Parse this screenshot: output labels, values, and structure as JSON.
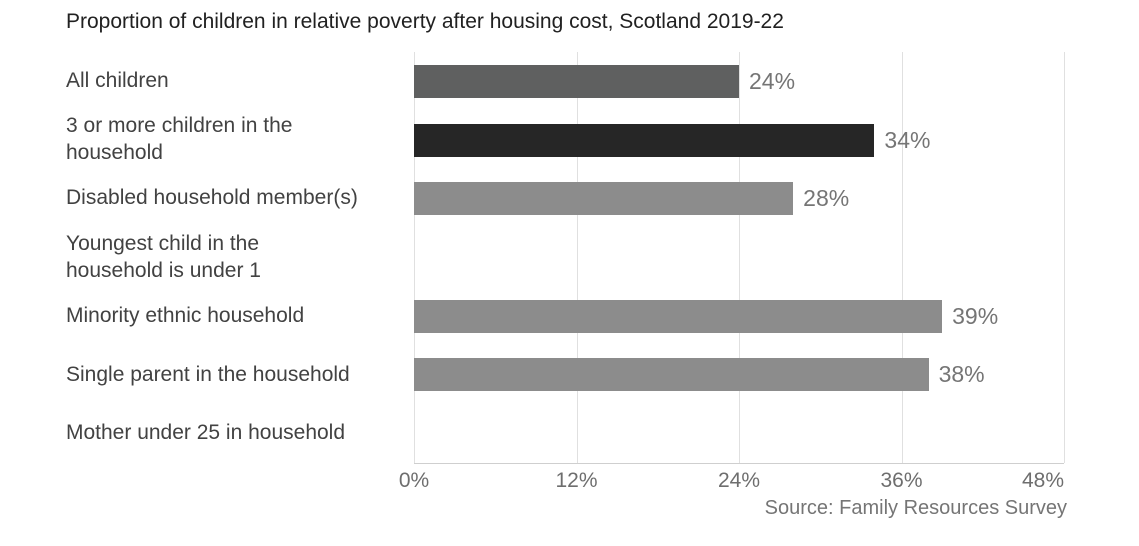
{
  "chart_data": {
    "type": "bar",
    "orientation": "horizontal",
    "title": "Proportion of children in relative poverty after housing cost, Scotland 2019-22",
    "source": "Source: Family Resources Survey",
    "categories": [
      "All children",
      "3 or more children in the\nhousehold",
      "Disabled household member(s)",
      "Youngest child in the\nhousehold is under 1",
      "Minority ethnic household",
      "Single parent in the household",
      "Mother under 25 in household"
    ],
    "values": [
      24,
      34,
      28,
      null,
      39,
      38,
      null
    ],
    "value_labels": [
      "24%",
      "34%",
      "28%",
      null,
      "39%",
      "38%",
      null
    ],
    "bar_colors": [
      "#5f6060",
      "#262626",
      "#8c8c8c",
      null,
      "#8c8c8c",
      "#8c8c8c",
      null
    ],
    "xlim": [
      0,
      48
    ],
    "x_tick_values": [
      0,
      12,
      24,
      36,
      48
    ],
    "x_tick_labels": [
      "0%",
      "12%",
      "24%",
      "36%",
      "48%"
    ],
    "grid": true,
    "legend": "none",
    "colors": {
      "background": "#ffffff",
      "grid": "#e0e0e0",
      "axis_line": "#cfcfcf",
      "title_text": "#212121",
      "category_text": "#424242",
      "value_text": "#757575",
      "tick_text": "#6e6e6e",
      "source_text": "#757575"
    }
  }
}
